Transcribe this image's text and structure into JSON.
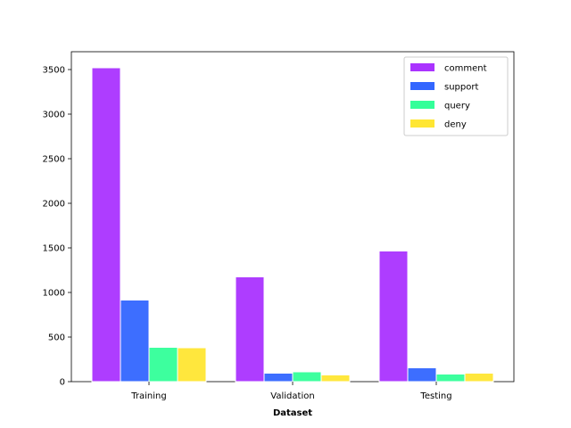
{
  "chart_data": {
    "type": "bar",
    "title": "",
    "xlabel": "Dataset",
    "ylabel": "",
    "categories": [
      "Training",
      "Validation",
      "Testing"
    ],
    "series": [
      {
        "name": "comment",
        "color": "#aa33ff",
        "values": [
          3520,
          1175,
          1465
        ]
      },
      {
        "name": "support",
        "color": "#3366ff",
        "values": [
          915,
          95,
          155
        ]
      },
      {
        "name": "query",
        "color": "#33ff99",
        "values": [
          385,
          110,
          85
        ]
      },
      {
        "name": "deny",
        "color": "#ffe633",
        "values": [
          380,
          75,
          95
        ]
      }
    ],
    "ylim": [
      0,
      3700
    ],
    "yticks": [
      0,
      500,
      1000,
      1500,
      2000,
      2500,
      3000,
      3500
    ],
    "grid": false,
    "legend_position": "top-right"
  }
}
